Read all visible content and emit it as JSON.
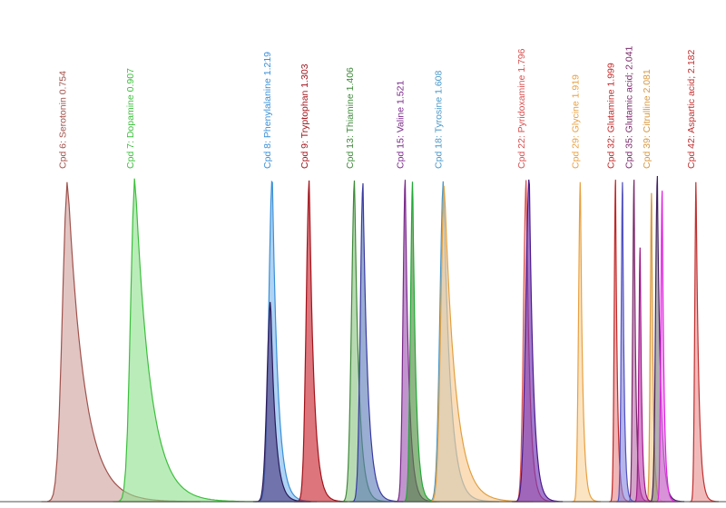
{
  "chart_data": {
    "type": "area",
    "title": "",
    "xlabel": "",
    "ylabel": "",
    "grid": false,
    "legend": "none",
    "x_unit": "min",
    "xlim": [
      0.6,
      2.25
    ],
    "ylim": [
      0,
      1.0
    ],
    "series": [
      {
        "name": "Cpd 6: Serotonin 0.754",
        "label": "Cpd 6: Serotonin 0.754",
        "rt": 0.754,
        "height": 0.88,
        "width_left": 0.012,
        "tail": 0.06,
        "color": "#a0524c",
        "fill": "#cfa29e",
        "labeled": true
      },
      {
        "name": "Cpd 7: Dopamine 0.907",
        "label": "Cpd 7: Dopamine 0.907",
        "rt": 0.907,
        "height": 0.89,
        "width_left": 0.01,
        "tail": 0.055,
        "color": "#3cbf3c",
        "fill": "#8fe08f",
        "labeled": true
      },
      {
        "name": "Cpd 8: Phenylalanine 1.219",
        "label": "Cpd 8: Phenylalanine 1.219",
        "rt": 1.219,
        "height": 0.89,
        "width_left": 0.008,
        "tail": 0.02,
        "color": "#3a8fd8",
        "fill": "#7db8ee",
        "labeled": true
      },
      {
        "name": "Cpd 9: Tryptophan 1.303",
        "label": "Cpd 9: Tryptophan 1.303",
        "rt": 1.303,
        "height": 0.88,
        "width_left": 0.007,
        "tail": 0.017,
        "color": "#a0141c",
        "fill": "#c8202c",
        "labeled": true
      },
      {
        "name": "Cpd 13: Thiamine 1.406",
        "label": "Cpd 13: Thiamine 1.406",
        "rt": 1.406,
        "height": 0.88,
        "width_left": 0.007,
        "tail": 0.016,
        "color": "#3f8a3a",
        "fill": "#8cc484",
        "labeled": true
      },
      {
        "name": "Cpd 15: Valine 1.521",
        "label": "Cpd 15: Valine 1.521",
        "rt": 1.521,
        "height": 0.88,
        "width_left": 0.005,
        "tail": 0.014,
        "color": "#7a2a8a",
        "fill": "#9c52b0",
        "labeled": true
      },
      {
        "name": "Cpd 18: Tyrosine 1.608",
        "label": "Cpd 18: Tyrosine 1.608",
        "rt": 1.608,
        "height": 0.88,
        "width_left": 0.008,
        "tail": 0.025,
        "color": "#4a98c8",
        "fill": "#9ec8e0",
        "labeled": true
      },
      {
        "name": "Cpd 22: Pyridoxamine 1.796",
        "label": "Cpd 22: Pyridoxamine 1.796",
        "rt": 1.796,
        "height": 0.88,
        "width_left": 0.006,
        "tail": 0.013,
        "color": "#d85050",
        "fill": "#f0a8a8",
        "labeled": true
      },
      {
        "name": "Cpd 29: Glycine 1.919",
        "label": "Cpd 29: Glycine 1.919",
        "rt": 1.919,
        "height": 0.88,
        "width_left": 0.004,
        "tail": 0.009,
        "color": "#e8a040",
        "fill": "#f8d49c",
        "labeled": true
      },
      {
        "name": "Cpd 32: Glutamine 1.999",
        "label": "Cpd 32: Glutamine 1.999",
        "rt": 1.999,
        "height": 0.88,
        "width_left": 0.003,
        "tail": 0.007,
        "color": "#c02828",
        "fill": "#e88888",
        "labeled": true
      },
      {
        "name": "Cpd 35: Glutamic acid; 2.041",
        "label": "Cpd 35: Glutamic acid; 2.041",
        "rt": 2.041,
        "height": 0.88,
        "width_left": 0.003,
        "tail": 0.007,
        "color": "#7a2a6a",
        "fill": "#b86ca8",
        "labeled": true
      },
      {
        "name": "Cpd 39: Citrulline 2.081",
        "label": "Cpd 39: Citrulline 2.081",
        "rt": 2.081,
        "height": 0.85,
        "width_left": 0.003,
        "tail": 0.006,
        "color": "#d89840",
        "fill": "#f4cc8c",
        "labeled": true
      },
      {
        "name": "Cpd 42: Aspartic acid; 2.182",
        "label": "Cpd 42: Aspartic acid; 2.182",
        "rt": 2.182,
        "height": 0.88,
        "width_left": 0.003,
        "tail": 0.01,
        "color": "#c03030",
        "fill": "#e89090",
        "labeled": true
      },
      {
        "name": "",
        "label": "",
        "rt": 1.215,
        "height": 0.55,
        "width_left": 0.008,
        "tail": 0.018,
        "color": "#2a1a5a",
        "fill": "#4a3880",
        "labeled": false
      },
      {
        "name": "",
        "label": "",
        "rt": 1.425,
        "height": 0.87,
        "width_left": 0.006,
        "tail": 0.018,
        "color": "#3a3aa0",
        "fill": "#5c7ab8",
        "labeled": false
      },
      {
        "name": "",
        "label": "",
        "rt": 1.538,
        "height": 0.88,
        "width_left": 0.005,
        "tail": 0.012,
        "color": "#22a838",
        "fill": "#4a8a3a",
        "labeled": false
      },
      {
        "name": "",
        "label": "",
        "rt": 1.61,
        "height": 0.87,
        "width_left": 0.008,
        "tail": 0.04,
        "color": "#e0a040",
        "fill": "#f8c890",
        "labeled": false
      },
      {
        "name": "",
        "label": "",
        "rt": 1.803,
        "height": 0.89,
        "width_left": 0.008,
        "tail": 0.015,
        "color": "#4a1a8a",
        "fill": "#6a2ab0",
        "labeled": false
      },
      {
        "name": "",
        "label": "",
        "rt": 2.015,
        "height": 0.88,
        "width_left": 0.003,
        "tail": 0.006,
        "color": "#5050c0",
        "fill": "#8888e0",
        "labeled": false
      },
      {
        "name": "",
        "label": "",
        "rt": 2.055,
        "height": 0.7,
        "width_left": 0.003,
        "tail": 0.006,
        "color": "#a01a8a",
        "fill": "#c040b0",
        "labeled": false
      },
      {
        "name": "",
        "label": "",
        "rt": 2.094,
        "height": 0.89,
        "width_left": 0.004,
        "tail": 0.012,
        "color": "#402060",
        "fill": "#808080",
        "labeled": false
      },
      {
        "name": "",
        "label": "",
        "rt": 2.105,
        "height": 0.85,
        "width_left": 0.003,
        "tail": 0.007,
        "color": "#e020e0",
        "fill": "#f080f0",
        "labeled": false
      }
    ]
  }
}
